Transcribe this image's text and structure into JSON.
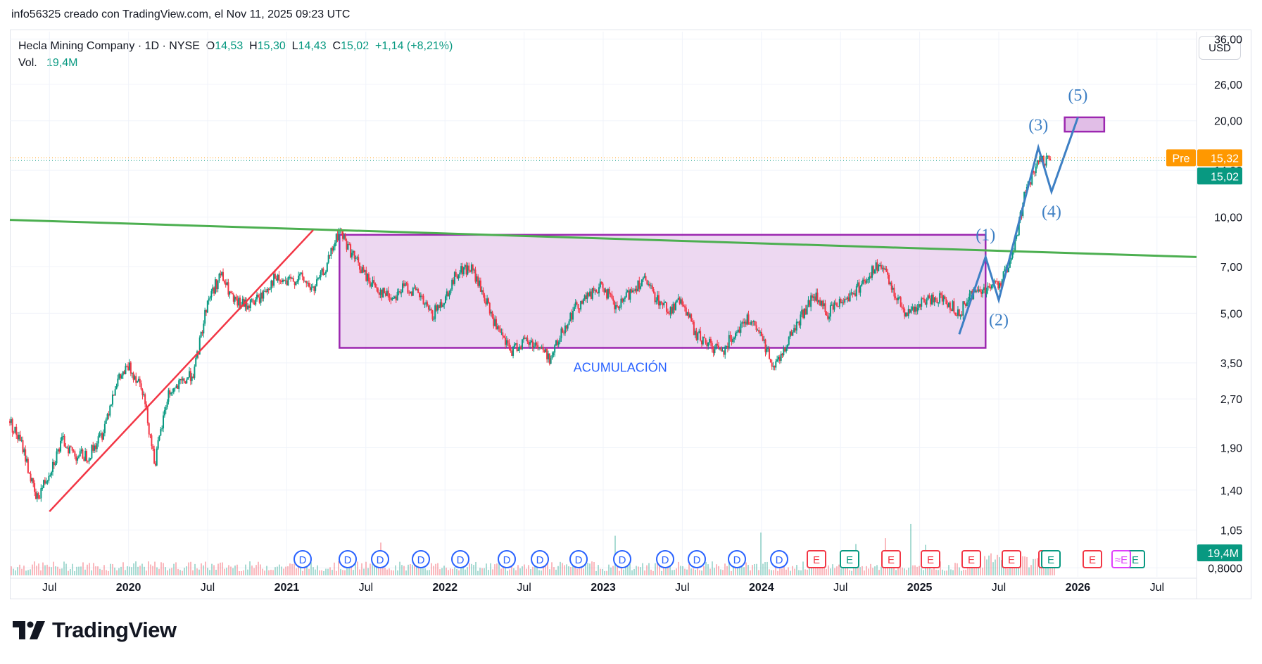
{
  "header": {
    "watermark_text": "info56325 creado con TradingView.com, el Nov 11, 2025 09:23 UTC"
  },
  "legend": {
    "symbol": "Hecla Mining Company · 1D · NYSE",
    "o_label": "O",
    "o": "14,53",
    "h_label": "H",
    "h": "15,30",
    "l_label": "L",
    "l": "14,43",
    "c_label": "C",
    "c": "15,02",
    "change": "+1,14 (+8,21%)",
    "vol_label": "Vol.",
    "vol": "19,4M"
  },
  "currency": "USD",
  "price_axis": {
    "ticks": [
      "36,00",
      "26,00",
      "20,00",
      "14,00",
      "10,00",
      "7,00",
      "5,00",
      "3,50",
      "2,70",
      "1,90",
      "1,40",
      "1,05",
      "0,8000"
    ],
    "pre_label": "Pre",
    "pre_value": "15,32",
    "last_value": "15,02",
    "volume_value": "19,4M"
  },
  "time_axis": {
    "ticks": [
      "Jul",
      "2020",
      "Jul",
      "2021",
      "Jul",
      "2022",
      "Jul",
      "2023",
      "Jul",
      "2024",
      "Jul",
      "2025",
      "Jul",
      "2026",
      "Jul"
    ]
  },
  "annotations": {
    "accumulation_label": "ACUMULACIÓN",
    "waves": [
      "(1)",
      "(2)",
      "(3)",
      "(4)",
      "(5)"
    ]
  },
  "events": [
    "D",
    "D",
    "D",
    "D",
    "D",
    "D",
    "D",
    "D",
    "D",
    "D",
    "D",
    "D",
    "D",
    "E",
    "E",
    "E",
    "E",
    "E",
    "E",
    "E",
    "E",
    "E",
    "E",
    "≈E"
  ],
  "colors": {
    "up": "#089981",
    "down": "#f23645",
    "trendline_green": "#4caf50",
    "trendline_red": "#f23645",
    "box_fill": "#e1bee7",
    "box_border": "#9c27b0",
    "wave_blue": "#2962ff",
    "wave_line": "#3d7fc4",
    "pre_badge": "#ff9800",
    "last_badge": "#089981",
    "dividend": "#2962ff",
    "earnings_red": "#f23645",
    "earnings_green": "#089981"
  },
  "chart_data": {
    "type": "candlestick",
    "title": "Hecla Mining Company · 1D · NYSE",
    "y_scale": "log",
    "ylim": [
      0.75,
      38
    ],
    "x_range": [
      "2019-04",
      "2026-10"
    ],
    "price_path": [
      {
        "date": "2019-04",
        "price": 2.3
      },
      {
        "date": "2019-05",
        "price": 1.9
      },
      {
        "date": "2019-06",
        "price": 1.3
      },
      {
        "date": "2019-07",
        "price": 1.6
      },
      {
        "date": "2019-08",
        "price": 2.0
      },
      {
        "date": "2019-09",
        "price": 1.8
      },
      {
        "date": "2019-10",
        "price": 1.8
      },
      {
        "date": "2019-11",
        "price": 2.1
      },
      {
        "date": "2019-12",
        "price": 3.0
      },
      {
        "date": "2020-01",
        "price": 3.4
      },
      {
        "date": "2020-02",
        "price": 3.0
      },
      {
        "date": "2020-03",
        "price": 1.7
      },
      {
        "date": "2020-04",
        "price": 2.8
      },
      {
        "date": "2020-05",
        "price": 3.0
      },
      {
        "date": "2020-06",
        "price": 3.3
      },
      {
        "date": "2020-07",
        "price": 5.5
      },
      {
        "date": "2020-08",
        "price": 6.6
      },
      {
        "date": "2020-09",
        "price": 5.4
      },
      {
        "date": "2020-10",
        "price": 5.3
      },
      {
        "date": "2020-11",
        "price": 5.6
      },
      {
        "date": "2020-12",
        "price": 6.4
      },
      {
        "date": "2021-01",
        "price": 6.2
      },
      {
        "date": "2021-02",
        "price": 6.5
      },
      {
        "date": "2021-03",
        "price": 5.9
      },
      {
        "date": "2021-04",
        "price": 7.0
      },
      {
        "date": "2021-05",
        "price": 9.1
      },
      {
        "date": "2021-06",
        "price": 7.6
      },
      {
        "date": "2021-07",
        "price": 6.5
      },
      {
        "date": "2021-08",
        "price": 5.9
      },
      {
        "date": "2021-09",
        "price": 5.6
      },
      {
        "date": "2021-10",
        "price": 6.1
      },
      {
        "date": "2021-11",
        "price": 5.7
      },
      {
        "date": "2021-12",
        "price": 4.9
      },
      {
        "date": "2022-01",
        "price": 5.6
      },
      {
        "date": "2022-02",
        "price": 6.8
      },
      {
        "date": "2022-03",
        "price": 6.9
      },
      {
        "date": "2022-04",
        "price": 5.6
      },
      {
        "date": "2022-05",
        "price": 4.4
      },
      {
        "date": "2022-06",
        "price": 3.8
      },
      {
        "date": "2022-07",
        "price": 4.1
      },
      {
        "date": "2022-08",
        "price": 4.0
      },
      {
        "date": "2022-09",
        "price": 3.6
      },
      {
        "date": "2022-10",
        "price": 4.5
      },
      {
        "date": "2022-11",
        "price": 5.3
      },
      {
        "date": "2022-12",
        "price": 5.7
      },
      {
        "date": "2023-01",
        "price": 6.1
      },
      {
        "date": "2023-02",
        "price": 5.1
      },
      {
        "date": "2023-03",
        "price": 5.8
      },
      {
        "date": "2023-04",
        "price": 6.4
      },
      {
        "date": "2023-05",
        "price": 5.6
      },
      {
        "date": "2023-06",
        "price": 5.1
      },
      {
        "date": "2023-07",
        "price": 5.5
      },
      {
        "date": "2023-08",
        "price": 4.3
      },
      {
        "date": "2023-09",
        "price": 4.0
      },
      {
        "date": "2023-10",
        "price": 3.8
      },
      {
        "date": "2023-11",
        "price": 4.4
      },
      {
        "date": "2023-12",
        "price": 4.8
      },
      {
        "date": "2024-01",
        "price": 4.2
      },
      {
        "date": "2024-02",
        "price": 3.4
      },
      {
        "date": "2024-03",
        "price": 4.1
      },
      {
        "date": "2024-04",
        "price": 4.9
      },
      {
        "date": "2024-05",
        "price": 5.7
      },
      {
        "date": "2024-06",
        "price": 5.0
      },
      {
        "date": "2024-07",
        "price": 5.5
      },
      {
        "date": "2024-08",
        "price": 5.8
      },
      {
        "date": "2024-09",
        "price": 6.5
      },
      {
        "date": "2024-10",
        "price": 7.1
      },
      {
        "date": "2024-11",
        "price": 5.9
      },
      {
        "date": "2024-12",
        "price": 5.0
      },
      {
        "date": "2025-01",
        "price": 5.3
      },
      {
        "date": "2025-02",
        "price": 5.6
      },
      {
        "date": "2025-03",
        "price": 5.5
      },
      {
        "date": "2025-04",
        "price": 5.0
      },
      {
        "date": "2025-05",
        "price": 5.8
      },
      {
        "date": "2025-06",
        "price": 6.0
      },
      {
        "date": "2025-07",
        "price": 6.2
      },
      {
        "date": "2025-08",
        "price": 7.3
      },
      {
        "date": "2025-09",
        "price": 12.0
      },
      {
        "date": "2025-10",
        "price": 14.8
      },
      {
        "date": "2025-11",
        "price": 15.02
      }
    ],
    "last_bar": {
      "date": "2025-11-10",
      "open": 14.53,
      "high": 15.3,
      "low": 14.43,
      "close": 15.02,
      "volume": "19,4M"
    },
    "drawings": {
      "accumulation_box": {
        "from": "2021-05",
        "to": "2025-06",
        "low": 3.9,
        "high": 8.8
      },
      "target_box": {
        "from": "2025-12",
        "to": "2026-03",
        "low": 18.5,
        "high": 20.5
      },
      "green_resistance": [
        {
          "date": "2019-04",
          "price": 9.8
        },
        {
          "date": "2026-10",
          "price": 7.5
        }
      ],
      "red_support": [
        {
          "date": "2019-07",
          "price": 1.2
        },
        {
          "date": "2021-03",
          "price": 9.1
        }
      ],
      "elliott_wave": [
        {
          "label": "start",
          "date": "2025-04",
          "price": 4.3
        },
        {
          "label": "(1)",
          "date": "2025-06",
          "price": 7.5
        },
        {
          "label": "(2)",
          "date": "2025-07",
          "price": 5.5
        },
        {
          "label": "(3)",
          "date": "2025-10",
          "price": 16.5
        },
        {
          "label": "(4)",
          "date": "2025-11",
          "price": 12.0
        },
        {
          "label": "(5)",
          "date": "2026-01",
          "price": 20.5
        }
      ]
    },
    "price_lines": {
      "pre": 15.32,
      "last": 15.02
    }
  }
}
